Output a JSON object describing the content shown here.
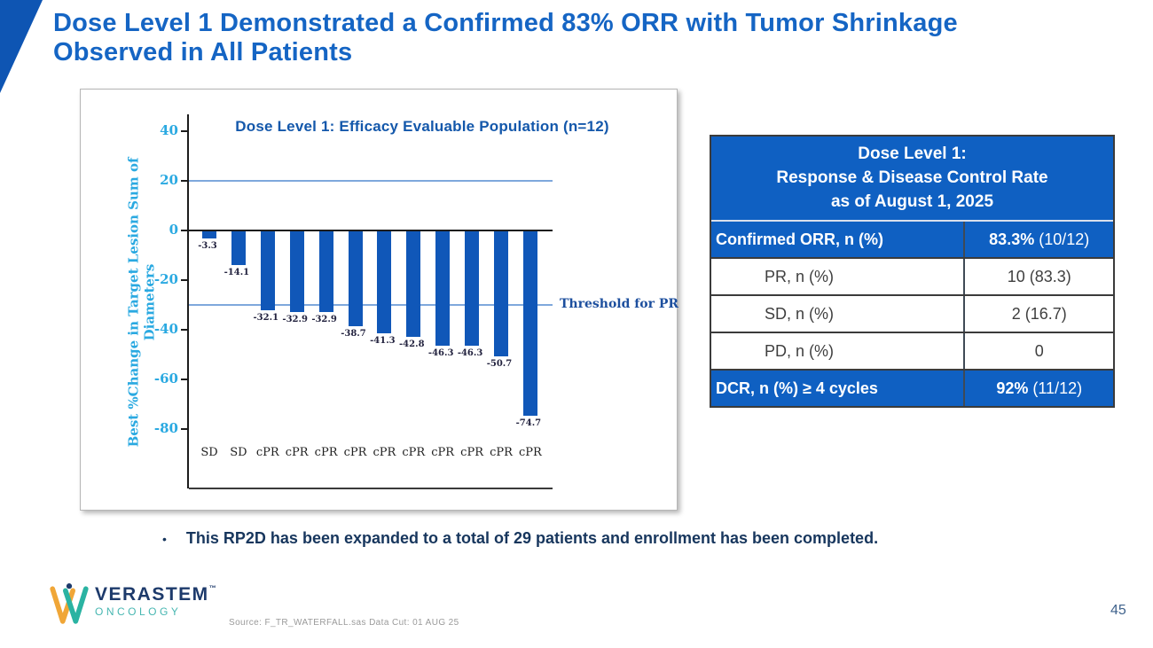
{
  "slide": {
    "title_line1": "Dose Level 1 Demonstrated a Confirmed 83% ORR with Tumor Shrinkage",
    "title_line2": "Observed in All Patients",
    "bullet": "This RP2D has been expanded to a total of 29 patients and enrollment has been completed.",
    "bullet_marker": "•",
    "source_note": "Source: F_TR_WATERFALL.sas Data Cut: 01 AUG 25",
    "page_number": "45"
  },
  "logo": {
    "name": "VERASTEM",
    "trademark": "™",
    "subtitle": "ONCOLOGY"
  },
  "chart_data": {
    "type": "bar",
    "title": "Dose Level 1: Efficacy Evaluable Population (n=12)",
    "ylabel": "Best %Change in Target Lesion Sum of Diameters",
    "xlabel": "",
    "categories": [
      "SD",
      "SD",
      "cPR",
      "cPR",
      "cPR",
      "cPR",
      "cPR",
      "cPR",
      "cPR",
      "cPR",
      "cPR",
      "cPR"
    ],
    "values": [
      -3.3,
      -14.1,
      -32.1,
      -32.9,
      -32.9,
      -38.7,
      -41.3,
      -42.8,
      -46.3,
      -46.3,
      -50.7,
      -74.7
    ],
    "yticks": [
      40,
      20,
      0,
      -20,
      -40,
      -60,
      -80
    ],
    "ylim": [
      -95,
      47
    ],
    "grid": false,
    "legend": "none",
    "bar_color": "#1057b8",
    "reference_lines": [
      {
        "y": 20,
        "label": ""
      },
      {
        "y": -30,
        "label": "Threshold for PR"
      }
    ]
  },
  "table": {
    "header": [
      "Dose Level 1:",
      "Response & Disease Control Rate",
      "as of August 1, 2025"
    ],
    "rows": [
      {
        "label": "Confirmed ORR, n (%)",
        "value_strong": "83.3%",
        "value_note": " (10/12)"
      },
      {
        "label": "PR, n (%)",
        "value": "10 (83.3)"
      },
      {
        "label": "SD, n (%)",
        "value": "2 (16.7)"
      },
      {
        "label": "PD, n (%)",
        "value": "0"
      },
      {
        "label": "DCR, n (%) ≥ 4 cycles",
        "value_strong": "92%",
        "value_note": " (11/12)"
      }
    ],
    "header_bg": "#0f60c2"
  }
}
